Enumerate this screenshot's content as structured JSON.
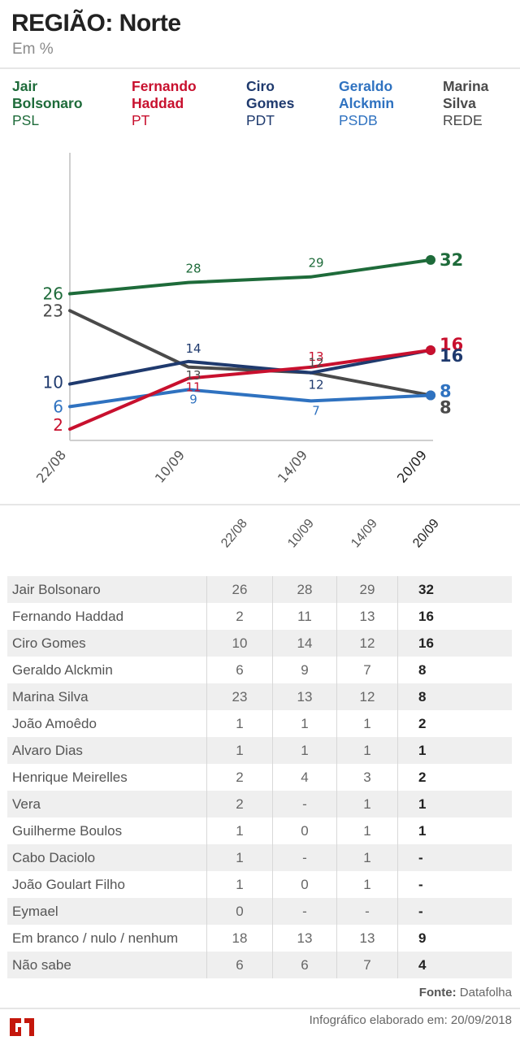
{
  "header": {
    "title": "REGIÃO: Norte",
    "subtitle": "Em %"
  },
  "legend": [
    {
      "name_line1": "Jair",
      "name_line2": "Bolsonaro",
      "party": "PSL",
      "color": "#1e6b3a"
    },
    {
      "name_line1": "Fernando",
      "name_line2": "Haddad",
      "party": "PT",
      "color": "#c8102e"
    },
    {
      "name_line1": "Ciro",
      "name_line2": "Gomes",
      "party": "PDT",
      "color": "#1f3a6e"
    },
    {
      "name_line1": "Geraldo",
      "name_line2": "Alckmin",
      "party": "PSDB",
      "color": "#2f72c0"
    },
    {
      "name_line1": "Marina",
      "name_line2": "Silva",
      "party": "REDE",
      "color": "#4a4a4a"
    }
  ],
  "chart_data": {
    "type": "line",
    "title": "REGIÃO: Norte",
    "subtitle": "Em %",
    "xlabel": "",
    "ylabel": "",
    "categories": [
      "22/08",
      "10/09",
      "14/09",
      "20/09"
    ],
    "ylim": [
      0,
      51
    ],
    "grid": false,
    "legend_position": "top",
    "series": [
      {
        "name": "Jair Bolsonaro",
        "party": "PSL",
        "color": "#1e6b3a",
        "values": [
          26,
          28,
          29,
          32
        ]
      },
      {
        "name": "Fernando Haddad",
        "party": "PT",
        "color": "#c8102e",
        "values": [
          2,
          11,
          13,
          16
        ]
      },
      {
        "name": "Ciro Gomes",
        "party": "PDT",
        "color": "#1f3a6e",
        "values": [
          10,
          14,
          12,
          16
        ]
      },
      {
        "name": "Geraldo Alckmin",
        "party": "PSDB",
        "color": "#2f72c0",
        "values": [
          6,
          9,
          7,
          8
        ]
      },
      {
        "name": "Marina Silva",
        "party": "REDE",
        "color": "#4a4a4a",
        "values": [
          23,
          13,
          12,
          8
        ]
      }
    ]
  },
  "table": {
    "columns": [
      "22/08",
      "10/09",
      "14/09",
      "20/09"
    ],
    "rows": [
      {
        "name": "Jair Bolsonaro",
        "values": [
          "26",
          "28",
          "29",
          "32"
        ]
      },
      {
        "name": "Fernando Haddad",
        "values": [
          "2",
          "11",
          "13",
          "16"
        ]
      },
      {
        "name": "Ciro Gomes",
        "values": [
          "10",
          "14",
          "12",
          "16"
        ]
      },
      {
        "name": "Geraldo Alckmin",
        "values": [
          "6",
          "9",
          "7",
          "8"
        ]
      },
      {
        "name": "Marina Silva",
        "values": [
          "23",
          "13",
          "12",
          "8"
        ]
      },
      {
        "name": "João Amoêdo",
        "values": [
          "1",
          "1",
          "1",
          "2"
        ]
      },
      {
        "name": "Alvaro Dias",
        "values": [
          "1",
          "1",
          "1",
          "1"
        ]
      },
      {
        "name": "Henrique Meirelles",
        "values": [
          "2",
          "4",
          "3",
          "2"
        ]
      },
      {
        "name": "Vera",
        "values": [
          "2",
          "-",
          "1",
          "1"
        ]
      },
      {
        "name": "Guilherme Boulos",
        "values": [
          "1",
          "0",
          "1",
          "1"
        ]
      },
      {
        "name": "Cabo Daciolo",
        "values": [
          "1",
          "-",
          "1",
          "-"
        ]
      },
      {
        "name": "João Goulart Filho",
        "values": [
          "1",
          "0",
          "1",
          "-"
        ]
      },
      {
        "name": "Eymael",
        "values": [
          "0",
          "-",
          "-",
          "-"
        ]
      },
      {
        "name": "Em branco / nulo / nenhum",
        "values": [
          "18",
          "13",
          "13",
          "9"
        ]
      },
      {
        "name": "Não sabe",
        "values": [
          "6",
          "6",
          "7",
          "4"
        ]
      }
    ]
  },
  "footer": {
    "source_label": "Fonte:",
    "source_value": "Datafolha",
    "note": "Infográfico elaborado em: 20/09/2018",
    "logo_text": "G1",
    "logo_color": "#c4170c"
  }
}
